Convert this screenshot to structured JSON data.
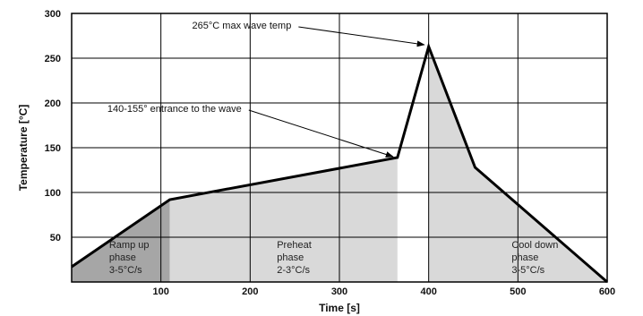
{
  "chart_data": {
    "type": "line",
    "xlabel": "Time [s]",
    "ylabel": "Temperature [°C]",
    "xlim": [
      0,
      600
    ],
    "ylim": [
      0,
      300
    ],
    "x_ticks": [
      100,
      200,
      300,
      400,
      500,
      600
    ],
    "y_ticks": [
      50,
      100,
      150,
      200,
      250,
      300
    ],
    "grid": true,
    "series": [
      {
        "x": [
          0,
          110,
          365,
          400,
          452,
          600
        ],
        "y": [
          17,
          92,
          139,
          263,
          128,
          0
        ],
        "color": "#000000"
      }
    ],
    "shaded_regions": [
      {
        "x_start": 0,
        "x_end": 110,
        "color": "#a6a6a6"
      },
      {
        "x_start": 110,
        "x_end": 365,
        "color": "#d9d9d9"
      },
      {
        "x_start": 400,
        "x_end": 600,
        "color": "#d9d9d9"
      }
    ],
    "phase_labels": [
      {
        "lines": [
          "Ramp up",
          "phase",
          "3-5°C/s"
        ],
        "x": 42,
        "y": 38
      },
      {
        "lines": [
          "Preheat",
          "phase",
          "2-3°C/s"
        ],
        "x": 230,
        "y": 38
      },
      {
        "lines": [
          "Cool down",
          "phase",
          "3-5°C/s"
        ],
        "x": 493,
        "y": 38
      }
    ],
    "annotations": [
      {
        "text": "265°C max wave temp",
        "text_x": 135,
        "text_y": 283,
        "arrow_to": [
          395,
          265
        ]
      },
      {
        "text": "140-155° entrance to the wave",
        "text_x": 40,
        "text_y": 190,
        "arrow_to": [
          360,
          140
        ]
      }
    ]
  }
}
